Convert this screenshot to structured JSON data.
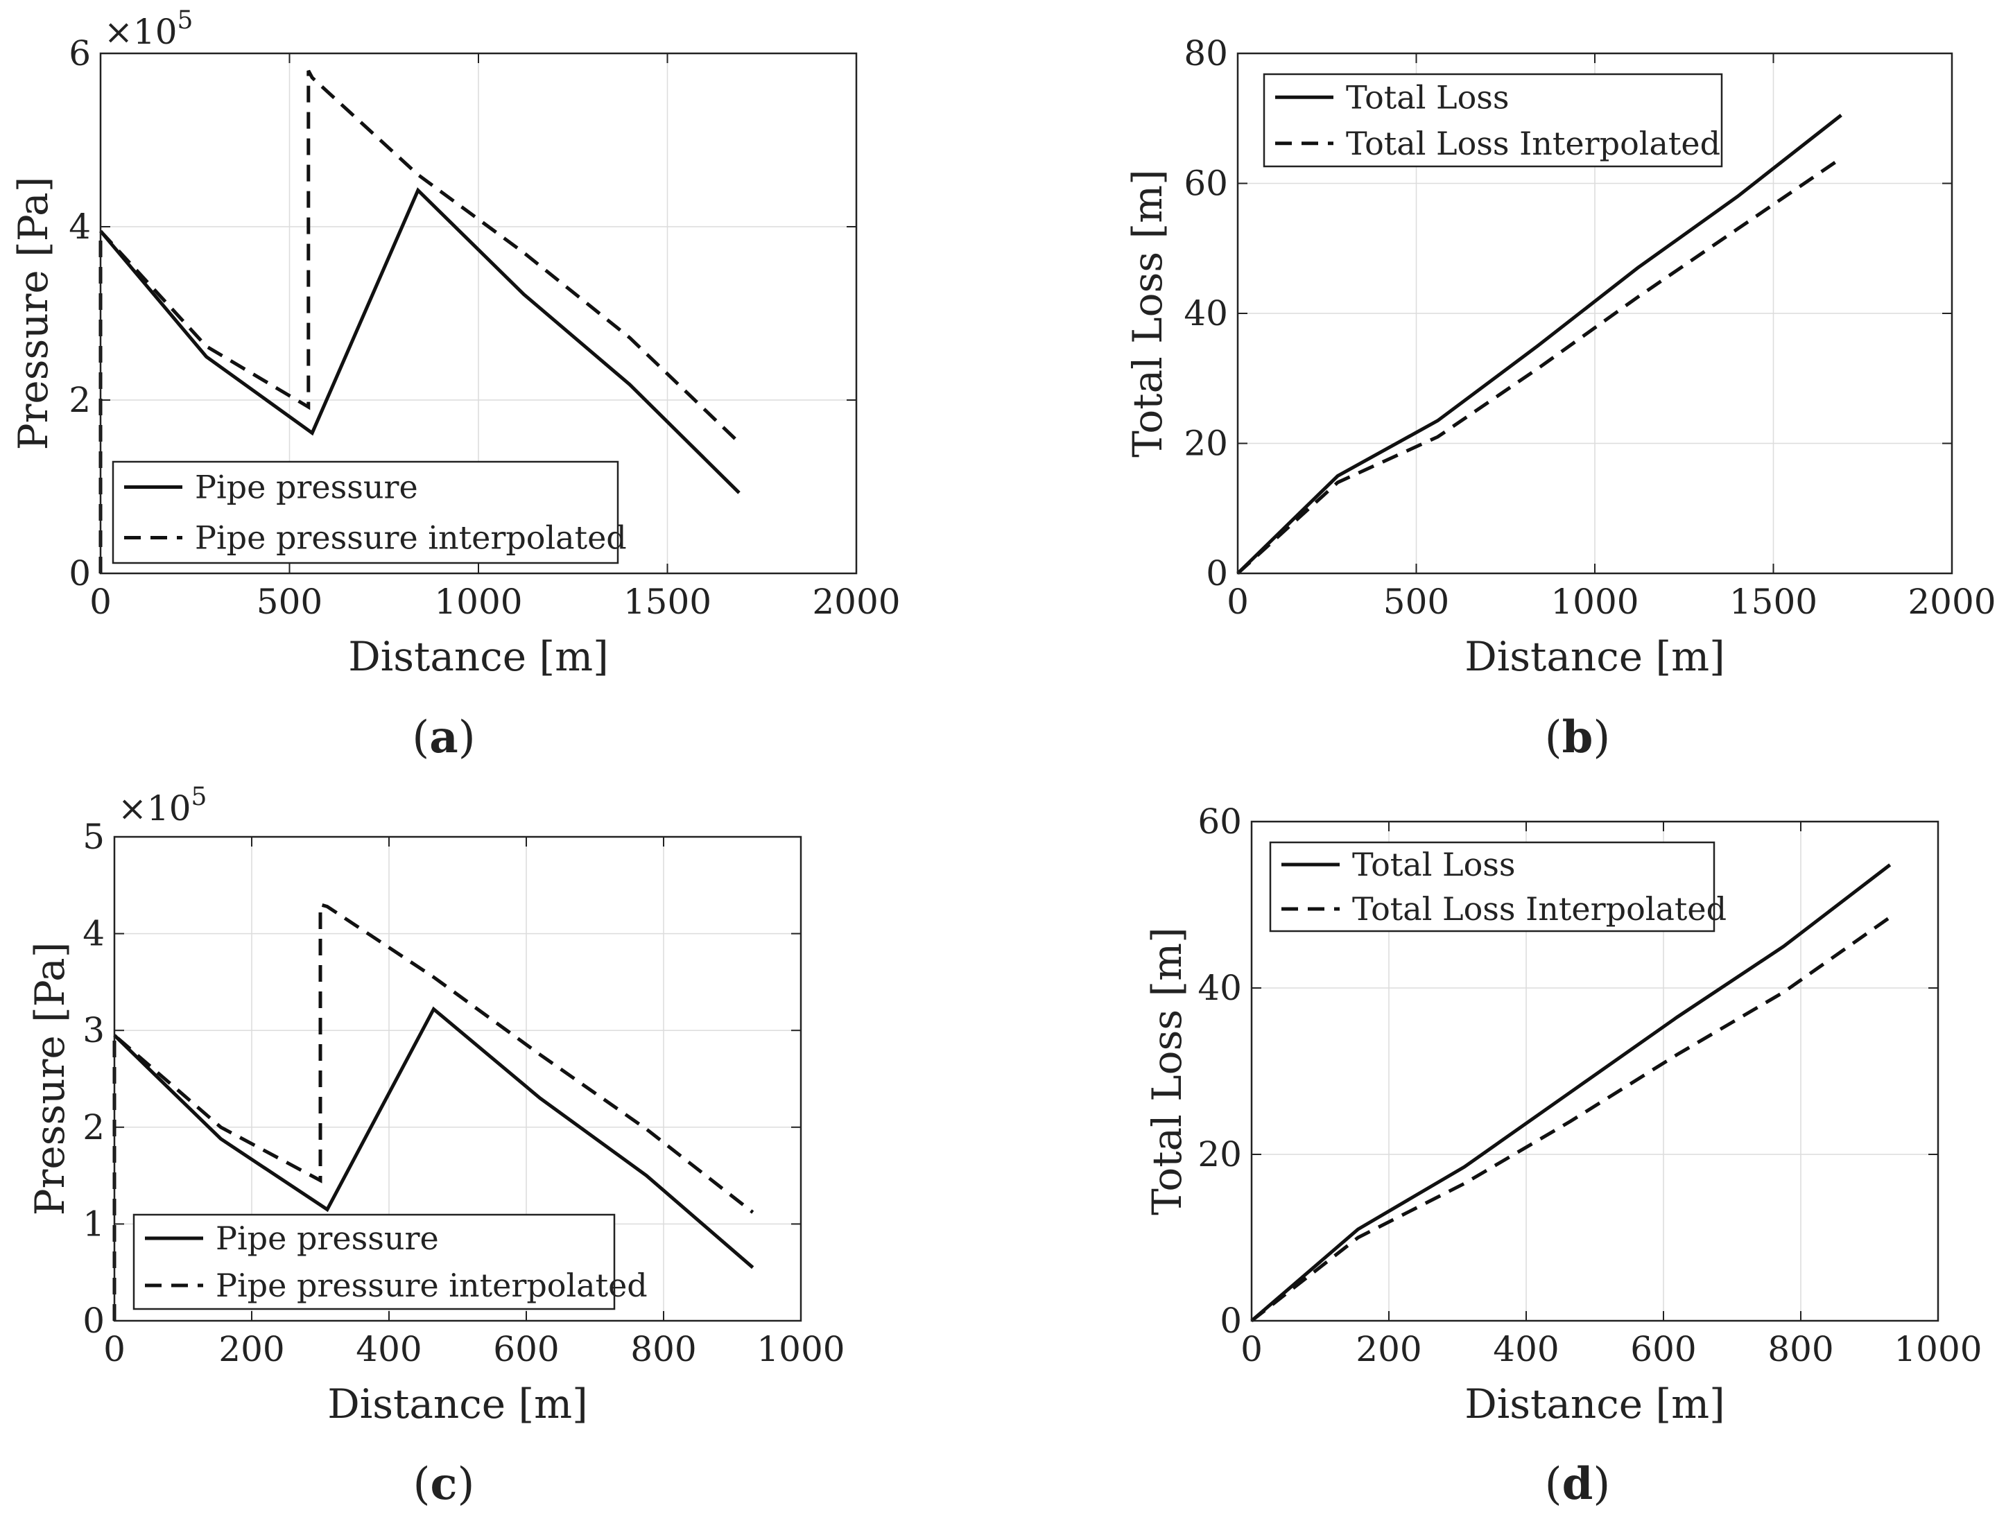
{
  "chart_data": [
    {
      "id": "a",
      "type": "line",
      "caption": "a",
      "xlabel": "Distance [m]",
      "ylabel": "Pressure [Pa]",
      "exponent_label": "×10",
      "exponent_power": "5",
      "xlim": [
        0,
        2000
      ],
      "ylim": [
        0,
        6
      ],
      "xticks": [
        0,
        500,
        1000,
        1500,
        2000
      ],
      "yticks": [
        0,
        2,
        4,
        6
      ],
      "grid": true,
      "legend_position": "bottom-left",
      "series": [
        {
          "name": "Pipe pressure",
          "style": "solid",
          "x": [
            0,
            280,
            560,
            840,
            1120,
            1400,
            1690
          ],
          "y": [
            3.95,
            2.5,
            1.62,
            4.42,
            3.22,
            2.18,
            0.93
          ]
        },
        {
          "name": "Pipe pressure interpolated",
          "style": "dashed",
          "x": [
            0,
            0,
            280,
            550,
            550,
            560,
            840,
            1120,
            1400,
            1680
          ],
          "y": [
            0,
            3.95,
            2.62,
            1.92,
            5.8,
            5.72,
            4.6,
            3.7,
            2.72,
            1.55
          ]
        }
      ]
    },
    {
      "id": "b",
      "type": "line",
      "caption": "b",
      "xlabel": "Distance [m]",
      "ylabel": "Total Loss [m]",
      "xlim": [
        0,
        2000
      ],
      "ylim": [
        0,
        80
      ],
      "xticks": [
        0,
        500,
        1000,
        1500,
        2000
      ],
      "yticks": [
        0,
        20,
        40,
        60,
        80
      ],
      "grid": true,
      "legend_position": "top-left",
      "series": [
        {
          "name": "Total Loss",
          "style": "solid",
          "x": [
            0,
            280,
            560,
            840,
            1120,
            1400,
            1690
          ],
          "y": [
            0,
            15,
            23.5,
            35,
            47,
            58,
            70.5
          ]
        },
        {
          "name": "Total Loss Interpolated",
          "style": "dashed",
          "x": [
            0,
            280,
            560,
            840,
            1120,
            1400,
            1680
          ],
          "y": [
            0,
            14,
            21,
            31.5,
            42.5,
            53,
            63.5
          ]
        }
      ]
    },
    {
      "id": "c",
      "type": "line",
      "caption": "c",
      "xlabel": "Distance [m]",
      "ylabel": "Pressure [Pa]",
      "exponent_label": "×10",
      "exponent_power": "5",
      "xlim": [
        0,
        1000
      ],
      "ylim": [
        0,
        5
      ],
      "xticks": [
        0,
        200,
        400,
        600,
        800,
        1000
      ],
      "yticks": [
        0,
        1,
        2,
        3,
        4,
        5
      ],
      "grid": true,
      "legend_position": "bottom-left",
      "series": [
        {
          "name": "Pipe pressure",
          "style": "solid",
          "x": [
            0,
            155,
            310,
            465,
            620,
            775,
            930
          ],
          "y": [
            2.95,
            1.88,
            1.15,
            3.22,
            2.3,
            1.5,
            0.55
          ]
        },
        {
          "name": "Pipe pressure interpolated",
          "style": "dashed",
          "x": [
            0,
            0,
            155,
            300,
            300,
            310,
            465,
            620,
            775,
            930
          ],
          "y": [
            0,
            2.95,
            2.0,
            1.45,
            4.3,
            4.28,
            3.55,
            2.75,
            1.98,
            1.12
          ]
        }
      ]
    },
    {
      "id": "d",
      "type": "line",
      "caption": "d",
      "xlabel": "Distance [m]",
      "ylabel": "Total Loss [m]",
      "xlim": [
        0,
        1000
      ],
      "ylim": [
        0,
        60
      ],
      "xticks": [
        0,
        200,
        400,
        600,
        800,
        1000
      ],
      "yticks": [
        0,
        20,
        40,
        60
      ],
      "grid": true,
      "legend_position": "top-left",
      "series": [
        {
          "name": "Total Loss",
          "style": "solid",
          "x": [
            0,
            155,
            310,
            465,
            620,
            775,
            930
          ],
          "y": [
            0,
            11,
            18.5,
            27.5,
            36.5,
            45,
            54.8
          ]
        },
        {
          "name": "Total Loss Interpolated",
          "style": "dashed",
          "x": [
            0,
            155,
            310,
            465,
            620,
            775,
            930
          ],
          "y": [
            0,
            10,
            16.5,
            24,
            32,
            39.5,
            48.5
          ]
        }
      ]
    }
  ]
}
